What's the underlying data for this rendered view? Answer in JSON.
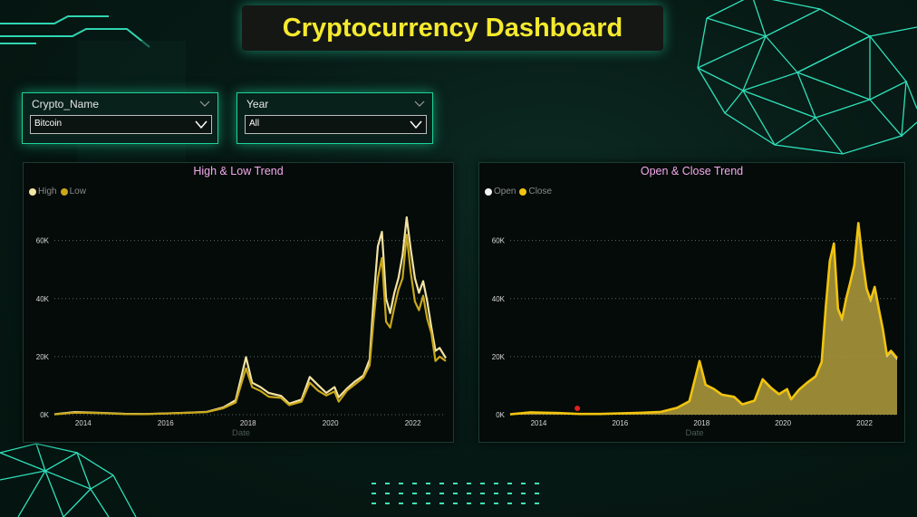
{
  "dashboard": {
    "title": "Cryptocurrency Dashboard"
  },
  "filters": {
    "crypto": {
      "label": "Crypto_Name",
      "value": "Bitcoin"
    },
    "year": {
      "label": "Year",
      "value": "All"
    }
  },
  "colors": {
    "high": "#f3e3a3",
    "low": "#c9a71a",
    "open": "#f2f2f2",
    "close": "#f1c40f",
    "title": "#f5ea2d",
    "accent": "#1fd39a"
  },
  "chart_data": [
    {
      "type": "line",
      "title": "High & Low Trend",
      "xlabel": "Date",
      "ylabel": "",
      "x_ticks": [
        "2014",
        "2016",
        "2018",
        "2020",
        "2022"
      ],
      "y_ticks": [
        "0K",
        "20K",
        "40K",
        "60K"
      ],
      "xlim": [
        2013.3,
        2022.8
      ],
      "ylim": [
        0,
        68000
      ],
      "legend": "top-left",
      "grid": true,
      "x": [
        2013.3,
        2013.8,
        2014.0,
        2014.5,
        2015.0,
        2015.5,
        2016.0,
        2016.5,
        2017.0,
        2017.4,
        2017.7,
        2017.95,
        2018.1,
        2018.3,
        2018.5,
        2018.8,
        2019.0,
        2019.3,
        2019.5,
        2019.7,
        2019.9,
        2020.1,
        2020.2,
        2020.4,
        2020.6,
        2020.8,
        2020.95,
        2021.05,
        2021.15,
        2021.25,
        2021.35,
        2021.45,
        2021.55,
        2021.65,
        2021.75,
        2021.85,
        2021.95,
        2022.05,
        2022.15,
        2022.25,
        2022.35,
        2022.45,
        2022.55,
        2022.65,
        2022.8
      ],
      "series": [
        {
          "name": "High",
          "values": [
            150,
            900,
            800,
            600,
            300,
            250,
            450,
            700,
            1000,
            2500,
            5000,
            19800,
            11000,
            9500,
            7500,
            6500,
            3800,
            5200,
            13000,
            10200,
            7500,
            9500,
            6000,
            9000,
            11500,
            13500,
            19000,
            40000,
            58000,
            63000,
            40000,
            35000,
            42000,
            47000,
            55000,
            68000,
            57000,
            47000,
            42000,
            46000,
            39000,
            30000,
            22000,
            23000,
            19500
          ]
        },
        {
          "name": "Low",
          "values": [
            100,
            700,
            650,
            500,
            220,
            200,
            400,
            620,
            900,
            2200,
            4200,
            16000,
            9500,
            8200,
            6200,
            5800,
            3300,
            4500,
            11000,
            8300,
            6600,
            8000,
            4500,
            8300,
            10500,
            12800,
            17000,
            33000,
            47000,
            54000,
            32000,
            30000,
            37000,
            43000,
            47000,
            62000,
            49000,
            39000,
            36000,
            41000,
            33000,
            28000,
            18500,
            20000,
            18500
          ]
        }
      ]
    },
    {
      "type": "area",
      "title": "Open & Close Trend",
      "xlabel": "Date",
      "ylabel": "",
      "x_ticks": [
        "2014",
        "2016",
        "2018",
        "2020",
        "2022"
      ],
      "y_ticks": [
        "0K",
        "20K",
        "40K",
        "60K"
      ],
      "xlim": [
        2013.3,
        2022.8
      ],
      "ylim": [
        0,
        68000
      ],
      "legend": "top-left",
      "grid": true,
      "x": [
        2013.3,
        2013.8,
        2014.0,
        2014.5,
        2015.0,
        2015.5,
        2016.0,
        2016.5,
        2017.0,
        2017.4,
        2017.7,
        2017.95,
        2018.1,
        2018.3,
        2018.5,
        2018.8,
        2019.0,
        2019.3,
        2019.5,
        2019.7,
        2019.9,
        2020.1,
        2020.2,
        2020.4,
        2020.6,
        2020.8,
        2020.95,
        2021.05,
        2021.15,
        2021.25,
        2021.35,
        2021.45,
        2021.55,
        2021.65,
        2021.75,
        2021.85,
        2021.95,
        2022.05,
        2022.15,
        2022.25,
        2022.35,
        2022.45,
        2022.55,
        2022.65,
        2022.8
      ],
      "series": [
        {
          "name": "Open",
          "values": [
            120,
            800,
            720,
            550,
            260,
            230,
            420,
            660,
            950,
            2350,
            4600,
            18000,
            10200,
            8800,
            6800,
            6100,
            3500,
            4800,
            12000,
            9200,
            7000,
            8700,
            5200,
            8600,
            11000,
            13100,
            18000,
            36500,
            52500,
            58500,
            36000,
            32500,
            39500,
            45000,
            51000,
            65000,
            53000,
            43000,
            39000,
            43500,
            36000,
            29000,
            20000,
            21500,
            19000
          ]
        },
        {
          "name": "Close",
          "values": [
            125,
            810,
            730,
            560,
            265,
            235,
            425,
            665,
            960,
            2380,
            4650,
            18500,
            10300,
            8900,
            6900,
            6150,
            3550,
            4850,
            12200,
            9300,
            7050,
            8800,
            5300,
            8700,
            11100,
            13200,
            18200,
            37000,
            53000,
            59000,
            36500,
            33000,
            40000,
            45500,
            51500,
            66000,
            53500,
            43500,
            39500,
            44000,
            36500,
            29500,
            20500,
            22000,
            19500
          ]
        }
      ],
      "annotations": [
        {
          "x": 2014.95,
          "y": 2200,
          "marker": "red-dot"
        }
      ]
    }
  ]
}
